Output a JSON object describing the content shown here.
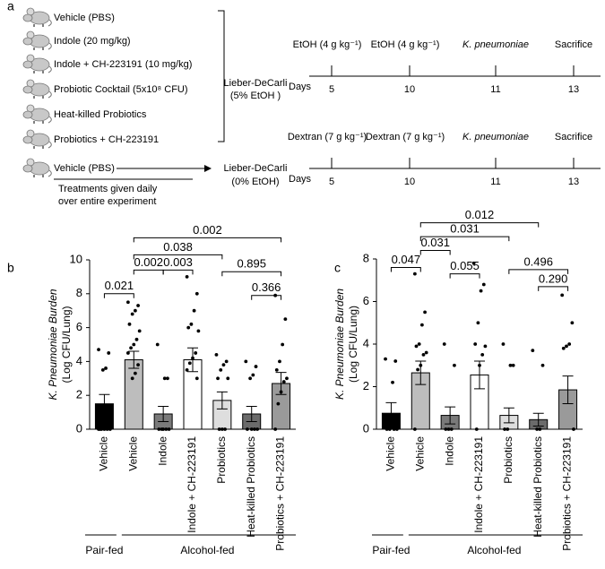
{
  "diagram": {
    "panel_label": "a",
    "treatments": [
      "Vehicle (PBS)",
      "Indole (20 mg/kg)",
      "Indole + CH-223191 (10 mg/kg)",
      "Probiotic Cocktail (5x10⁸ CFU)",
      "Heat-killed Probiotics",
      "Probiotics + CH-223191",
      "Vehicle (PBS)"
    ],
    "note": [
      "Treatments given daily",
      "over entire experiment"
    ],
    "diet_alcohol": [
      "Lieber-DeCarli",
      "(5% EtOH )"
    ],
    "diet_control": [
      "Lieber-DeCarli",
      "(0% EtOH)"
    ],
    "timeline_alcohol": {
      "days_label": "Days",
      "events": [
        "EtOH (4 g kg⁻¹)",
        "EtOH (4 g kg⁻¹)",
        "K. pneumoniae",
        "Sacrifice"
      ],
      "days": [
        5,
        10,
        11,
        13
      ]
    },
    "timeline_control": {
      "days_label": "Days",
      "events": [
        "Dextran (7 g kg⁻¹)",
        "Dextran (7 g kg⁻¹)",
        "K. pneumoniae",
        "Sacrifice"
      ],
      "days": [
        5,
        10,
        11,
        13
      ]
    }
  },
  "chart_data": [
    {
      "type": "bar",
      "panel_label": "b",
      "ylabel": [
        "K. Pneumoniae Burden",
        "(Log CFU/Lung)"
      ],
      "categories": [
        "Vehicle",
        "Vehicle",
        "Indole",
        "Indole + CH-223191",
        "Probiotics",
        "Heat-killed Probiotics",
        "Probiotics + CH-223191"
      ],
      "values": [
        1.5,
        4.1,
        0.9,
        4.1,
        1.7,
        0.9,
        2.7
      ],
      "errors": [
        0.55,
        0.5,
        0.45,
        0.7,
        0.5,
        0.45,
        0.65
      ],
      "colors": [
        "#000000",
        "#bdbdbd",
        "#7a7a7a",
        "#ffffff",
        "#dedede",
        "#6b6b6b",
        "#9a9a9a"
      ],
      "points": [
        [
          4.7,
          4.5,
          3.6,
          3.5,
          0,
          0,
          0,
          0,
          0,
          0
        ],
        [
          7.5,
          7.3,
          7.0,
          6.8,
          6.2,
          5.8,
          5.3,
          5.0,
          4.8,
          4.5,
          3.8,
          3.3,
          3.0
        ],
        [
          5.0,
          3.0,
          3.0,
          0,
          0,
          0,
          0,
          0
        ],
        [
          9.0,
          8.0,
          7.0,
          6.2,
          6.0,
          5.8,
          4.5,
          4.2,
          3.9,
          3.5,
          3.0
        ],
        [
          4.4,
          4.0,
          3.8,
          3.5,
          3.0,
          3.0,
          0,
          0,
          0
        ],
        [
          4.0,
          3.7,
          3.2,
          3.0,
          0,
          0,
          0,
          0
        ],
        [
          7.9,
          6.5,
          5.0,
          4.0,
          3.5,
          3.0,
          2.8,
          2.2,
          1.5,
          0
        ]
      ],
      "p_values": [
        "0.021",
        "0.002",
        "0.003",
        "0.038",
        "0.002",
        "0.895",
        "0.366"
      ],
      "group_labels": [
        "Pair-fed",
        "Alcohol-fed"
      ],
      "ylim": [
        0,
        10
      ],
      "yticks": [
        0,
        2,
        4,
        6,
        8,
        10
      ]
    },
    {
      "type": "bar",
      "panel_label": "c",
      "ylabel": [
        "K. Pneumoniae Burden",
        "(Log CFU/Lung)"
      ],
      "categories": [
        "Vehicle",
        "Vehicle",
        "Indole",
        "Indole + CH-223191",
        "Probiotics",
        "Heat-killed Probiotics",
        "Probiotics + CH-223191"
      ],
      "values": [
        0.75,
        2.65,
        0.65,
        2.55,
        0.65,
        0.45,
        1.85
      ],
      "errors": [
        0.5,
        0.55,
        0.4,
        0.65,
        0.35,
        0.3,
        0.65
      ],
      "colors": [
        "#000000",
        "#bdbdbd",
        "#7a7a7a",
        "#ffffff",
        "#dedede",
        "#6b6b6b",
        "#9a9a9a"
      ],
      "points": [
        [
          3.3,
          3.2,
          2.2,
          0,
          0,
          0,
          0
        ],
        [
          7.3,
          5.5,
          4.9,
          4.0,
          3.9,
          3.6,
          3.5,
          3.0,
          2.8,
          0
        ],
        [
          4.0,
          3.0,
          0,
          0,
          0
        ],
        [
          7.8,
          6.8,
          6.5,
          5.0,
          4.0,
          3.9,
          3.5,
          3.0,
          0
        ],
        [
          4.0,
          3.0,
          3.0,
          0,
          0
        ],
        [
          3.7,
          3.0,
          0,
          0
        ],
        [
          6.3,
          5.0,
          4.0,
          3.9,
          3.8,
          0
        ]
      ],
      "p_values": [
        "0.047",
        "0.031",
        "0.031",
        "0.012",
        "0.055",
        "0.496",
        "0.290"
      ],
      "group_labels": [
        "Pair-fed",
        "Alcohol-fed"
      ],
      "ylim": [
        0,
        8
      ],
      "yticks": [
        0,
        2,
        4,
        6,
        8
      ]
    }
  ]
}
